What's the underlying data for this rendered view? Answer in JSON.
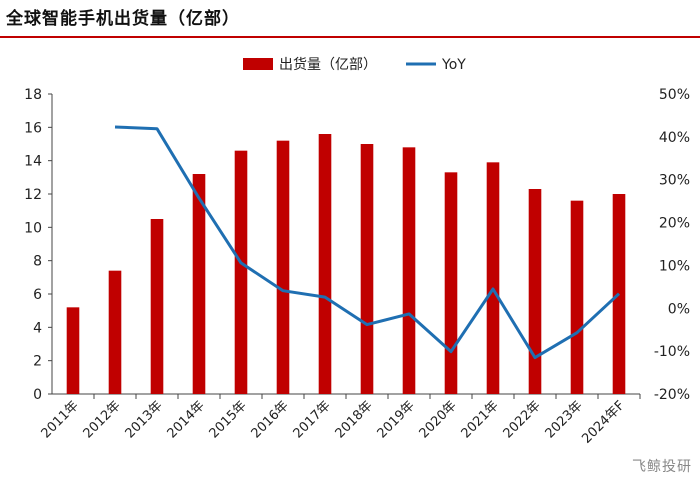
{
  "title": "全球智能手机出货量（亿部）",
  "watermark": "飞鲸投研",
  "chart_data": {
    "type": "bar",
    "categories": [
      "2011年",
      "2012年",
      "2013年",
      "2014年",
      "2015年",
      "2016年",
      "2017年",
      "2018年",
      "2019年",
      "2020年",
      "2021年",
      "2022年",
      "2023年",
      "2024年F"
    ],
    "series": [
      {
        "name": "出货量（亿部）",
        "type": "bar",
        "axis": "left",
        "color": "#c00000",
        "values": [
          5.2,
          7.4,
          10.5,
          13.2,
          14.6,
          15.2,
          15.6,
          15.0,
          14.8,
          13.3,
          13.9,
          12.3,
          11.6,
          12.0
        ]
      },
      {
        "name": "YoY",
        "type": "line",
        "axis": "right",
        "color": "#1f6fb2",
        "values": [
          null,
          42.3,
          41.9,
          25.7,
          10.6,
          4.1,
          2.6,
          -3.8,
          -1.3,
          -10.1,
          4.5,
          -11.5,
          -5.7,
          3.4
        ]
      }
    ],
    "ylim": [
      0,
      18
    ],
    "yticks": [
      0,
      2,
      4,
      6,
      8,
      10,
      12,
      14,
      16,
      18
    ],
    "y2lim": [
      -20,
      50
    ],
    "y2ticks": [
      "-20%",
      "-10%",
      "0%",
      "10%",
      "20%",
      "30%",
      "40%",
      "50%"
    ],
    "y2tick_values": [
      -20,
      -10,
      0,
      10,
      20,
      30,
      40,
      50
    ],
    "legend_position": "top-center",
    "grid": false
  }
}
